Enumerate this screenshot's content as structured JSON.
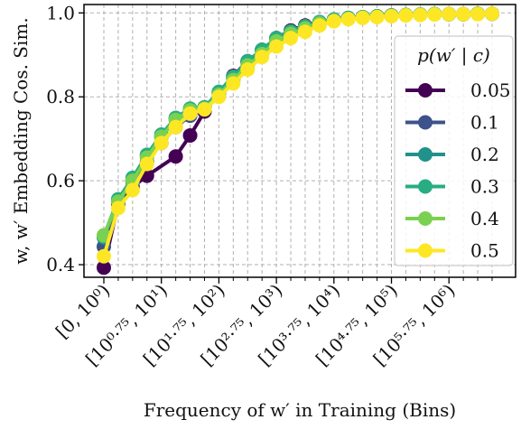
{
  "chart_data": {
    "type": "line",
    "xlabel": "Frequency of w′ in Training (Bins)",
    "ylabel": "w, w′ Embedding Cos. Sim.",
    "ylim": [
      0.37,
      1.02
    ],
    "yticks": [
      "0.4",
      "0.6",
      "0.8",
      "1.0"
    ],
    "ytick_values": [
      0.4,
      0.6,
      0.8,
      1.0
    ],
    "xtick_labels": [
      "[0, 10⁰)",
      "[10⁰·⁷⁵, 10¹)",
      "[10¹·⁷⁵, 10²)",
      "[10²·⁷⁵, 10³)",
      "[10³·⁷⁵, 10⁴)",
      "[10⁴·⁷⁵, 10⁵)",
      "[10⁵·⁷⁵, 10⁶)"
    ],
    "xtick_positions": [
      0,
      4,
      8,
      12,
      16,
      20,
      24
    ],
    "x": [
      0,
      1,
      2,
      3,
      4,
      5,
      6,
      7,
      8,
      9,
      10,
      11,
      12,
      13,
      14,
      15,
      16,
      17,
      18,
      19,
      20,
      21,
      22,
      23,
      24,
      25,
      26,
      27
    ],
    "grid": true,
    "legend": {
      "title": "p(w′ | c)",
      "placement": "right"
    },
    "series": [
      {
        "name": "0.05",
        "color": "#440154",
        "values": [
          0.393,
          0.545,
          0.585,
          0.612,
          null,
          0.658,
          0.708,
          0.765,
          0.81,
          0.85,
          0.885,
          0.912,
          0.94,
          0.958,
          0.97,
          0.978,
          0.984,
          0.988,
          0.99,
          0.992,
          0.994,
          0.995,
          0.996,
          0.997,
          0.997,
          0.997,
          0.998,
          0.998
        ]
      },
      {
        "name": "0.1",
        "color": "#3b528b",
        "values": [
          0.443,
          0.55,
          0.597,
          0.645,
          0.69,
          0.728,
          0.755,
          0.772,
          0.81,
          0.845,
          0.882,
          0.91,
          0.938,
          0.955,
          0.968,
          0.978,
          0.984,
          0.988,
          0.99,
          0.992,
          0.994,
          0.995,
          0.996,
          0.997,
          0.997,
          0.997,
          0.998,
          0.998
        ]
      },
      {
        "name": "0.2",
        "color": "#21918c",
        "values": [
          0.465,
          0.552,
          0.605,
          0.66,
          0.705,
          0.748,
          0.77,
          0.775,
          0.81,
          0.845,
          0.882,
          0.912,
          0.938,
          0.955,
          0.968,
          0.978,
          0.984,
          0.988,
          0.99,
          0.992,
          0.994,
          0.995,
          0.996,
          0.997,
          0.997,
          0.997,
          0.998,
          0.998
        ]
      },
      {
        "name": "0.3",
        "color": "#27ad81",
        "values": [
          0.468,
          0.556,
          0.607,
          0.662,
          0.71,
          0.75,
          0.772,
          0.775,
          0.812,
          0.848,
          0.885,
          0.912,
          0.94,
          0.956,
          0.968,
          0.978,
          0.984,
          0.988,
          0.99,
          0.992,
          0.994,
          0.995,
          0.996,
          0.997,
          0.997,
          0.997,
          0.998,
          0.998
        ]
      },
      {
        "name": "0.4",
        "color": "#7ad151",
        "values": [
          0.47,
          0.55,
          0.6,
          0.655,
          0.705,
          0.745,
          0.768,
          0.772,
          0.805,
          0.84,
          0.875,
          0.902,
          0.932,
          0.95,
          0.963,
          0.975,
          0.982,
          0.986,
          0.989,
          0.991,
          0.993,
          0.995,
          0.996,
          0.997,
          0.997,
          0.997,
          0.998,
          0.998
        ]
      },
      {
        "name": "0.5",
        "color": "#fde725",
        "values": [
          0.42,
          0.535,
          0.578,
          0.64,
          0.69,
          0.728,
          0.76,
          0.77,
          0.8,
          0.832,
          0.865,
          0.895,
          0.92,
          0.94,
          0.955,
          0.97,
          0.98,
          0.985,
          0.988,
          0.99,
          0.992,
          0.994,
          0.995,
          0.996,
          0.997,
          0.997,
          0.997,
          0.998
        ]
      }
    ]
  }
}
